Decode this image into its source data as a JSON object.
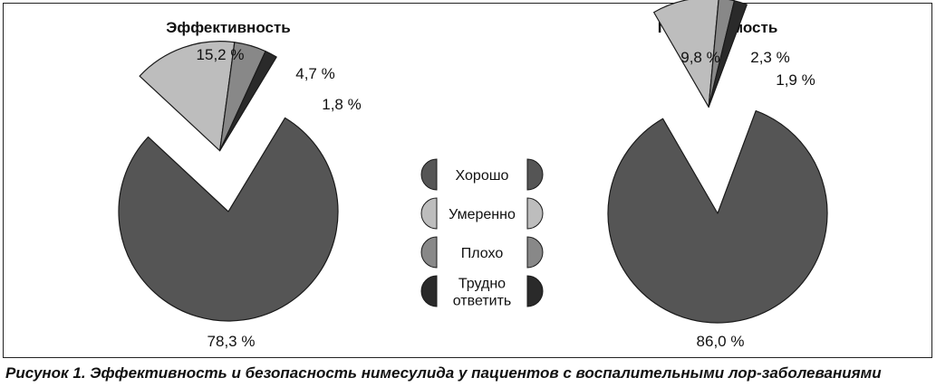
{
  "caption": "Рисунок 1. Эффективность и безопасность нимесулида у пациентов с воспалительными лор-заболеваниями",
  "legend": [
    {
      "label_lines": [
        "Хорошо"
      ],
      "color": "#555555"
    },
    {
      "label_lines": [
        "Умеренно"
      ],
      "color": "#bdbdbd"
    },
    {
      "label_lines": [
        "Плохо"
      ],
      "color": "#888888"
    },
    {
      "label_lines": [
        "Трудно",
        "ответить"
      ],
      "color": "#2a2a2a"
    }
  ],
  "chart_data": [
    {
      "type": "pie",
      "title": "Эффективность",
      "categories": [
        "Хорошо",
        "Умеренно",
        "Плохо",
        "Трудно ответить"
      ],
      "values": [
        78.3,
        15.2,
        4.7,
        1.8
      ],
      "value_labels": [
        "78,3 %",
        "15,2 %",
        "4,7 %",
        "1,8 %"
      ],
      "colors": [
        "#555555",
        "#bdbdbd",
        "#888888",
        "#2a2a2a"
      ],
      "exploded": [
        "Умеренно",
        "Плохо",
        "Трудно ответить"
      ]
    },
    {
      "type": "pie",
      "title": "Переносимость",
      "categories": [
        "Хорошо",
        "Умеренно",
        "Плохо",
        "Трудно ответить"
      ],
      "values": [
        86.0,
        9.8,
        2.3,
        1.9
      ],
      "value_labels": [
        "86,0 %",
        "9,8 %",
        "2,3 %",
        "1,9 %"
      ],
      "colors": [
        "#555555",
        "#bdbdbd",
        "#888888",
        "#2a2a2a"
      ],
      "exploded": [
        "Умеренно",
        "Плохо",
        "Трудно ответить"
      ]
    }
  ]
}
